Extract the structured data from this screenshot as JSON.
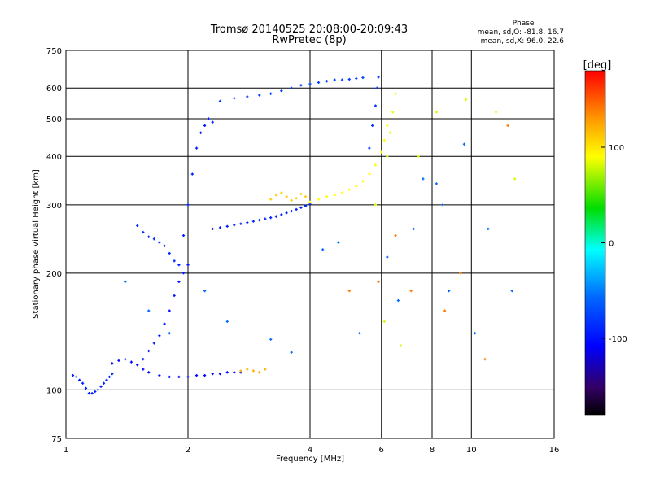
{
  "title": {
    "line1": "Tromsø 20140525 20:08:00-20:09:43",
    "line2": "RwPretec (8p)"
  },
  "phase_info": {
    "heading": "Phase",
    "line_o": "mean, sd,O: -81.8, 16.7",
    "line_x": "mean, sd,X:  96.0, 22.6"
  },
  "chart_data": {
    "type": "scatter",
    "title": "Tromsø 20140525 20:08:00-20:09:43",
    "subtitle": "RwPretec (8p)",
    "xlabel": "Frequency [MHz]",
    "ylabel": "Stationary phase Virtual Height [km]",
    "x_scale": "log",
    "y_scale": "log",
    "xlim": [
      1,
      16
    ],
    "ylim": [
      75,
      750
    ],
    "x_ticks": [
      1,
      2,
      4,
      6,
      8,
      10,
      16
    ],
    "x_tick_labels": [
      "1",
      "2",
      "4",
      "6",
      "8",
      "10",
      "16"
    ],
    "y_ticks": [
      75,
      100,
      200,
      300,
      400,
      500,
      600,
      750
    ],
    "y_tick_labels": [
      "75",
      "100",
      "200",
      "300",
      "400",
      "500",
      "600",
      "750"
    ],
    "grid": true,
    "colorbar": {
      "label": "[deg]",
      "range": [
        -180,
        180
      ],
      "ticks": [
        100,
        0,
        -100
      ],
      "tick_labels": [
        "100",
        "0",
        "-100"
      ]
    },
    "series": [
      {
        "x": [
          1.04,
          1.06,
          1.08,
          1.1,
          1.12,
          1.14,
          1.16,
          1.18,
          1.2,
          1.22,
          1.24,
          1.26,
          1.28,
          1.3
        ],
        "y": [
          109,
          108,
          106,
          104,
          101,
          98,
          98,
          99,
          100,
          102,
          104,
          106,
          108,
          110
        ],
        "phase": -95
      },
      {
        "x": [
          1.3,
          1.35,
          1.4,
          1.45,
          1.5,
          1.55,
          1.6,
          1.7,
          1.8,
          1.9,
          2.0,
          2.1,
          2.2,
          2.3,
          2.4,
          2.5,
          2.6,
          2.7
        ],
        "y": [
          117,
          119,
          120,
          118,
          116,
          113,
          111,
          109,
          108,
          108,
          108,
          109,
          109,
          110,
          110,
          111,
          111,
          111
        ],
        "phase": -105
      },
      {
        "x": [
          1.55,
          1.6,
          1.65,
          1.7,
          1.75,
          1.8,
          1.85,
          1.9,
          1.95,
          2.0
        ],
        "y": [
          120,
          126,
          132,
          138,
          148,
          160,
          175,
          190,
          200,
          210
        ],
        "phase": -100
      },
      {
        "x": [
          1.9,
          1.95,
          2.0,
          2.05,
          2.1,
          2.15,
          2.2,
          2.25,
          2.3
        ],
        "y": [
          210,
          250,
          300,
          360,
          420,
          460,
          480,
          500,
          490
        ],
        "phase": -95
      },
      {
        "x": [
          1.5,
          1.55,
          1.6,
          1.65,
          1.7,
          1.75,
          1.8,
          1.85
        ],
        "y": [
          265,
          255,
          248,
          245,
          240,
          235,
          225,
          215
        ],
        "phase": -90
      },
      {
        "x": [
          2.3,
          2.4,
          2.5,
          2.6,
          2.7,
          2.8,
          2.9,
          3.0,
          3.1,
          3.2,
          3.3,
          3.4,
          3.5,
          3.6,
          3.7,
          3.8,
          3.9,
          4.0
        ],
        "y": [
          260,
          262,
          264,
          266,
          268,
          270,
          272,
          274,
          276,
          278,
          280,
          283,
          286,
          289,
          292,
          295,
          298,
          301
        ],
        "phase": -95
      },
      {
        "x": [
          4.0,
          4.2,
          4.4,
          4.6,
          4.8,
          5.0,
          5.2,
          5.4,
          5.6,
          5.8,
          6.0,
          6.1,
          6.2
        ],
        "y": [
          305,
          310,
          315,
          318,
          322,
          328,
          335,
          345,
          360,
          380,
          410,
          440,
          480
        ],
        "phase": 90
      },
      {
        "x": [
          3.2,
          3.3,
          3.4,
          3.5,
          3.6,
          3.7,
          3.8,
          3.9
        ],
        "y": [
          310,
          318,
          322,
          315,
          308,
          312,
          320,
          315
        ],
        "phase": 110
      },
      {
        "x": [
          2.4,
          2.6,
          2.8,
          3.0,
          3.2,
          3.4,
          3.6,
          3.8,
          4.0,
          4.2,
          4.4,
          4.6,
          4.8,
          5.0,
          5.2,
          5.4
        ],
        "y": [
          555,
          565,
          570,
          575,
          580,
          590,
          600,
          610,
          615,
          620,
          625,
          630,
          630,
          632,
          635,
          638
        ],
        "phase": -80
      },
      {
        "x": [
          5.6,
          5.7,
          5.8,
          5.85,
          5.9
        ],
        "y": [
          420,
          480,
          540,
          600,
          640
        ],
        "phase": -85
      },
      {
        "x": [
          6.2,
          6.3,
          6.4,
          6.5
        ],
        "y": [
          400,
          460,
          520,
          580
        ],
        "phase": 85
      },
      {
        "x": [
          2.7,
          2.8,
          2.9,
          3.0,
          3.1
        ],
        "y": [
          112,
          113,
          112,
          111,
          113
        ],
        "phase": 120
      },
      {
        "x": [
          1.4,
          1.6,
          1.8,
          2.2,
          2.5,
          3.2,
          3.6,
          4.3,
          4.7,
          5.3,
          6.2,
          6.6,
          7.2,
          7.6,
          8.2,
          8.5,
          8.8,
          9.6,
          10.2,
          11.0,
          12.6
        ],
        "y": [
          190,
          160,
          140,
          180,
          150,
          135,
          125,
          230,
          240,
          140,
          220,
          170,
          260,
          350,
          340,
          300,
          180,
          430,
          140,
          260,
          180
        ],
        "phase": -60
      },
      {
        "x": [
          5.8,
          6.1,
          6.7,
          7.4,
          8.2,
          9.7,
          11.5,
          12.8
        ],
        "y": [
          300,
          150,
          130,
          400,
          520,
          560,
          520,
          350
        ],
        "phase": 80
      },
      {
        "x": [
          5.0,
          5.9,
          6.5,
          7.1,
          8.6,
          9.4,
          10.8,
          12.3
        ],
        "y": [
          180,
          190,
          250,
          180,
          160,
          200,
          120,
          480
        ],
        "phase": 140
      }
    ]
  }
}
